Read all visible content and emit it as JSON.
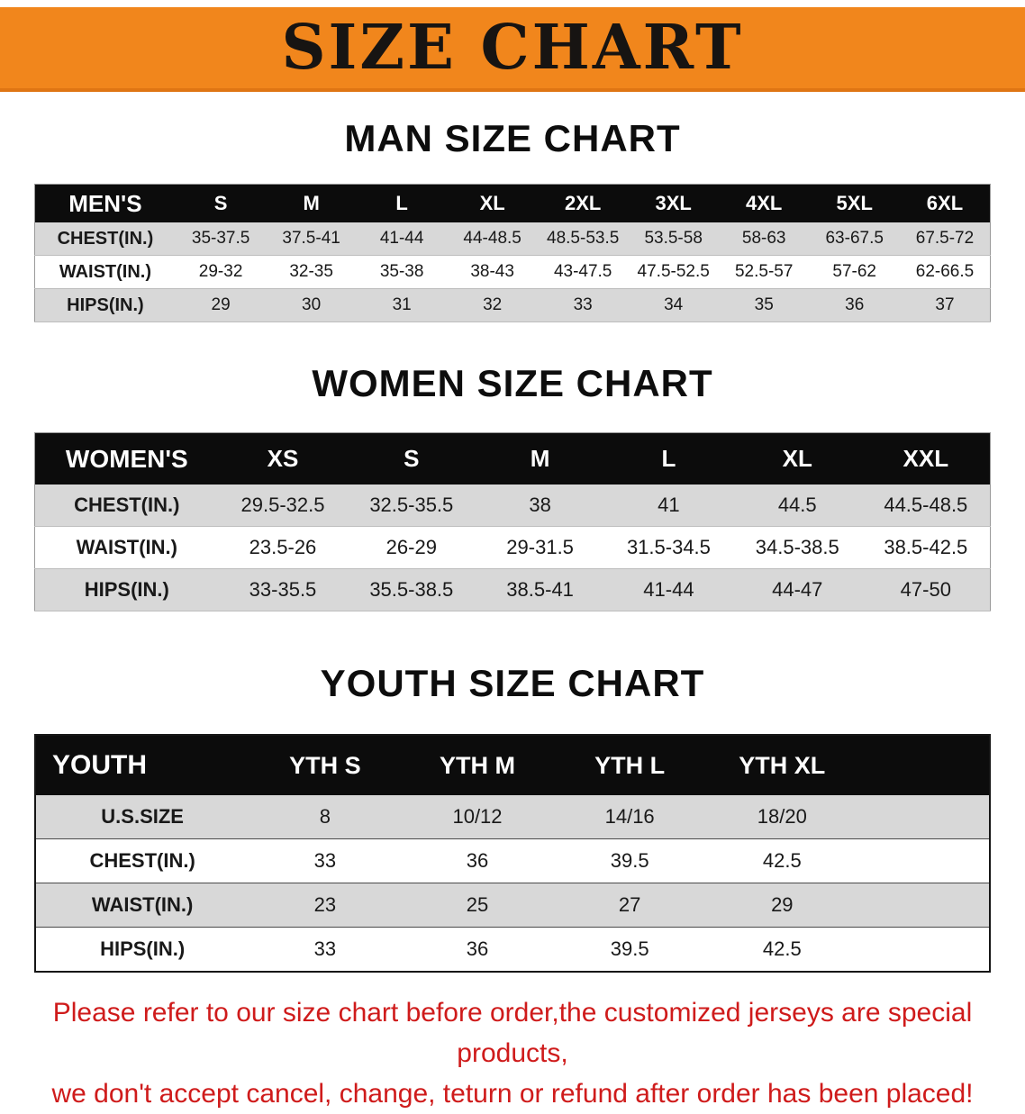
{
  "banner": {
    "title": "SIZE CHART"
  },
  "sections": [
    {
      "heading": "MAN SIZE CHART",
      "table": {
        "label": "MEN'S",
        "columns": [
          "S",
          "M",
          "L",
          "XL",
          "2XL",
          "3XL",
          "4XL",
          "5XL",
          "6XL"
        ],
        "rows": [
          {
            "label": "CHEST(IN.)",
            "values": [
              "35-37.5",
              "37.5-41",
              "41-44",
              "44-48.5",
              "48.5-53.5",
              "53.5-58",
              "58-63",
              "63-67.5",
              "67.5-72"
            ]
          },
          {
            "label": "WAIST(IN.)",
            "values": [
              "29-32",
              "32-35",
              "35-38",
              "38-43",
              "43-47.5",
              "47.5-52.5",
              "52.5-57",
              "57-62",
              "62-66.5"
            ]
          },
          {
            "label": "HIPS(IN.)",
            "values": [
              "29",
              "30",
              "31",
              "32",
              "33",
              "34",
              "35",
              "36",
              "37"
            ]
          }
        ]
      }
    },
    {
      "heading": "WOMEN SIZE CHART",
      "table": {
        "label": "WOMEN'S",
        "columns": [
          "XS",
          "S",
          "M",
          "L",
          "XL",
          "XXL"
        ],
        "rows": [
          {
            "label": "CHEST(IN.)",
            "values": [
              "29.5-32.5",
              "32.5-35.5",
              "38",
              "41",
              "44.5",
              "44.5-48.5"
            ]
          },
          {
            "label": "WAIST(IN.)",
            "values": [
              "23.5-26",
              "26-29",
              "29-31.5",
              "31.5-34.5",
              "34.5-38.5",
              "38.5-42.5"
            ]
          },
          {
            "label": "HIPS(IN.)",
            "values": [
              "33-35.5",
              "35.5-38.5",
              "38.5-41",
              "41-44",
              "44-47",
              "47-50"
            ]
          }
        ]
      }
    },
    {
      "heading": "YOUTH SIZE CHART",
      "table": {
        "label": "YOUTH",
        "columns": [
          "YTH S",
          "YTH M",
          "YTH L",
          "YTH XL"
        ],
        "rows": [
          {
            "label": "U.S.SIZE",
            "values": [
              "8",
              "10/12",
              "14/16",
              "18/20"
            ]
          },
          {
            "label": "CHEST(IN.)",
            "values": [
              "33",
              "36",
              "39.5",
              "42.5"
            ]
          },
          {
            "label": "WAIST(IN.)",
            "values": [
              "23",
              "25",
              "27",
              "29"
            ]
          },
          {
            "label": "HIPS(IN.)",
            "values": [
              "33",
              "36",
              "39.5",
              "42.5"
            ]
          }
        ]
      }
    }
  ],
  "footer": {
    "line1": "Please refer to our size chart before order,the customized jerseys are special products,",
    "line2": "we don't accept cancel, change, teturn or refund after order has been placed!"
  },
  "colors": {
    "banner_bg": "#F1861C",
    "table_header_bg": "#0C0C0C",
    "stripe_row_bg": "#D8D8D8",
    "footer_text": "#CF1B1B"
  }
}
